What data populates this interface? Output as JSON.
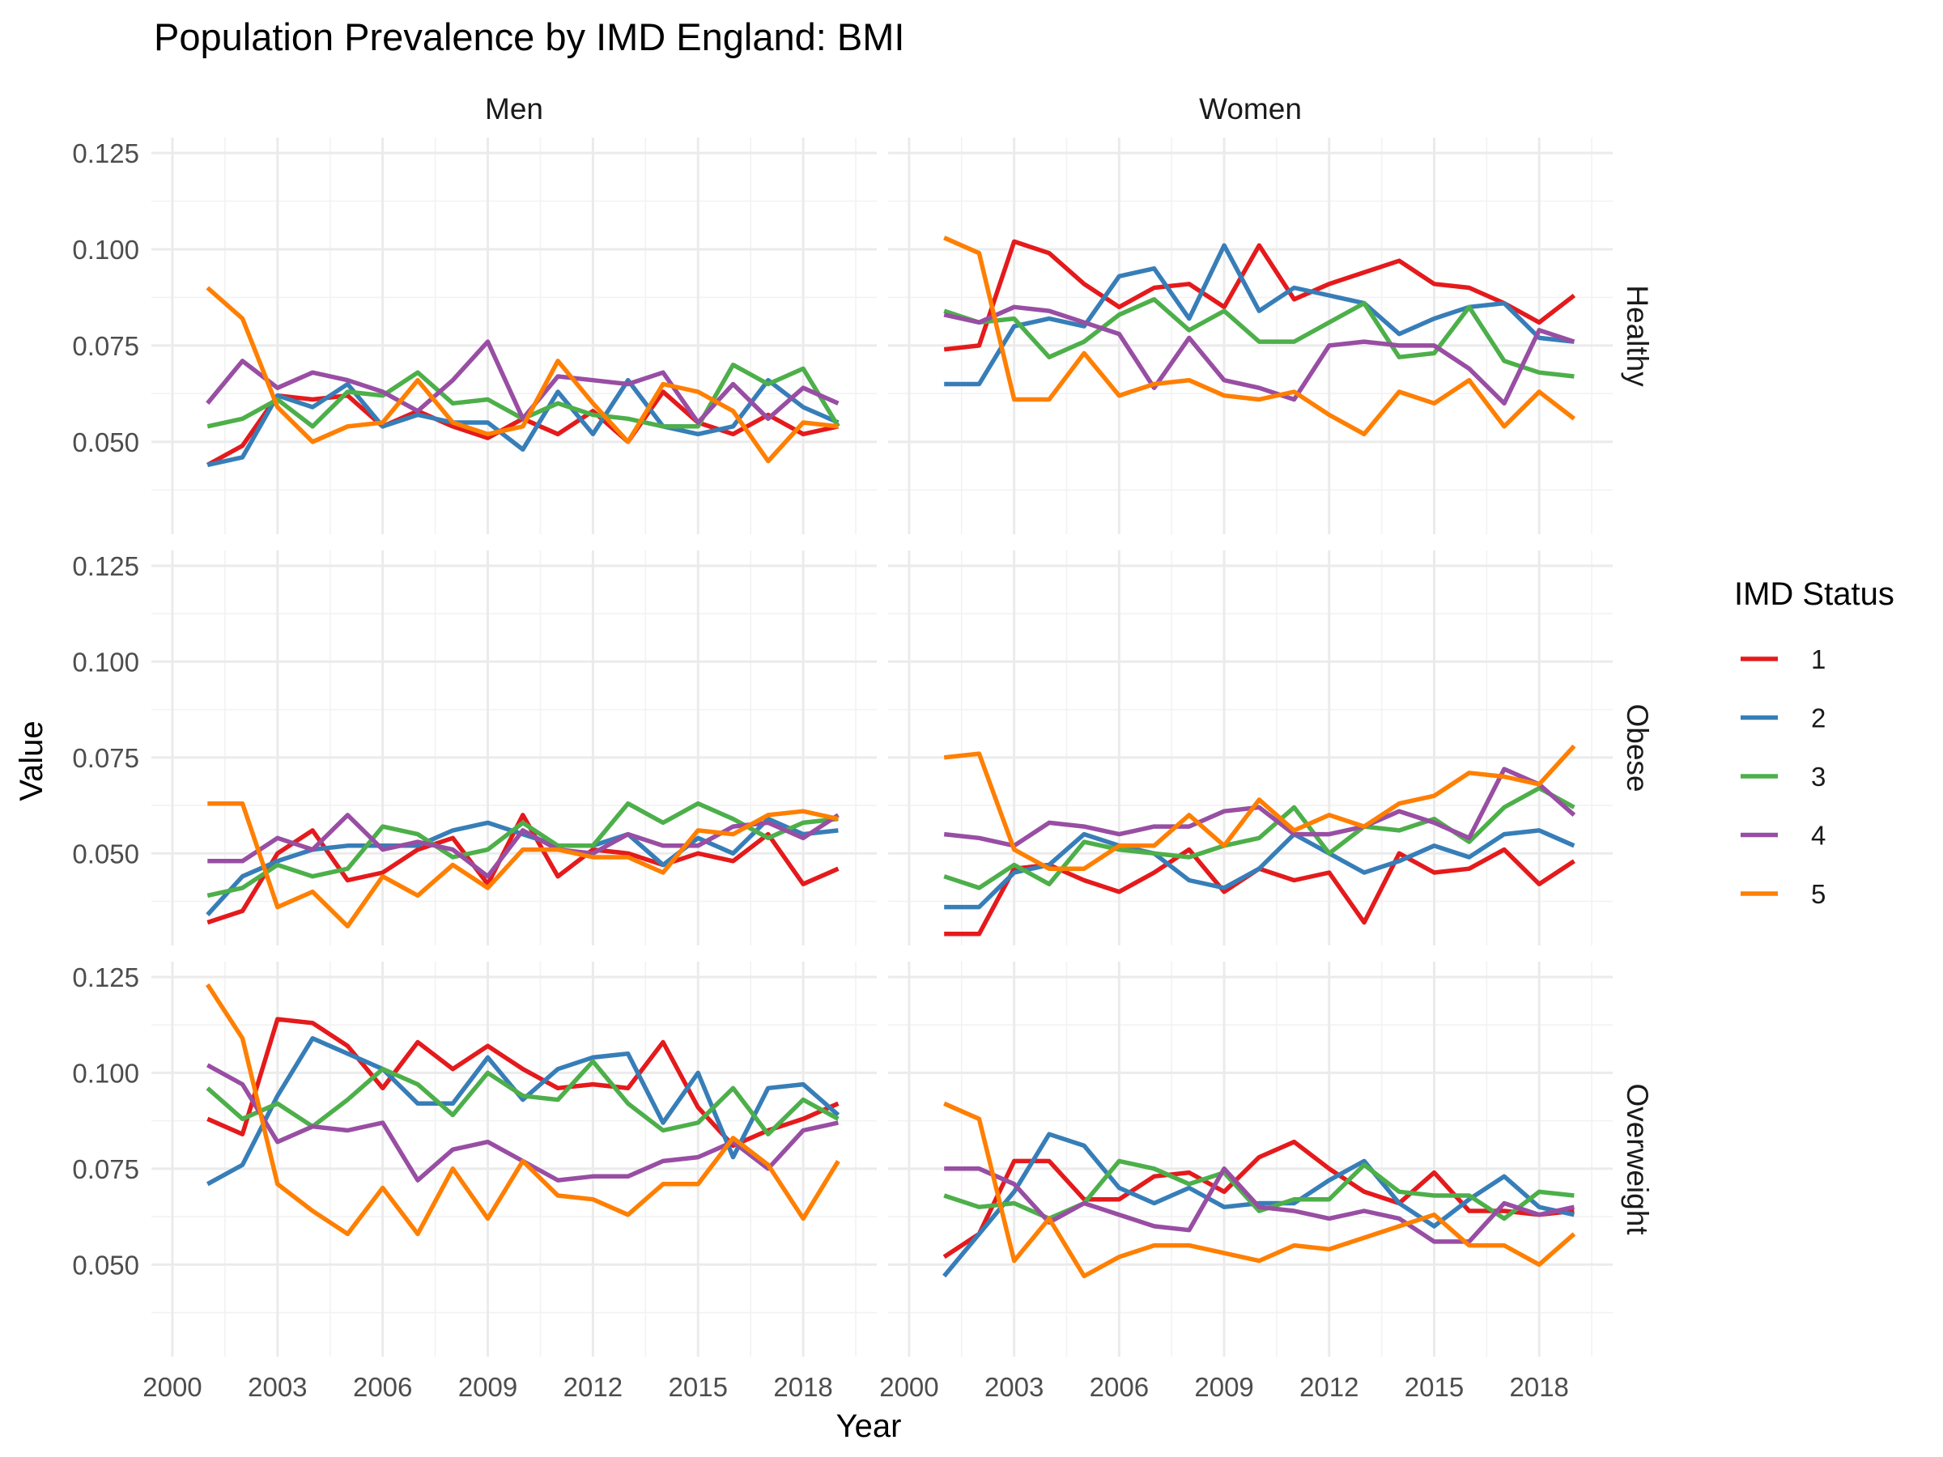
{
  "chart_data": {
    "type": "line",
    "title": "Population Prevalence by IMD England: BMI",
    "xlabel": "Year",
    "ylabel": "Value",
    "columns": [
      "Men",
      "Women"
    ],
    "rows": [
      "Healthy",
      "Obese",
      "Overweight"
    ],
    "x_ticks": [
      2000,
      2003,
      2006,
      2009,
      2012,
      2015,
      2018
    ],
    "x_tick_labels": [
      "2000",
      "2003",
      "2006",
      "2009",
      "2012",
      "2015",
      "2018"
    ],
    "xlim": [
      1999.4,
      2020.1
    ],
    "y_ticks": [
      0.05,
      0.075,
      0.1,
      0.125
    ],
    "y_tick_labels": [
      "0.050",
      "0.075",
      "0.100",
      "0.125"
    ],
    "ylim": [
      0.026,
      0.129
    ],
    "grid": true,
    "legend": {
      "title": "IMD Status",
      "position": "right",
      "items": [
        {
          "label": "1",
          "color": "#E41A1C"
        },
        {
          "label": "2",
          "color": "#377EB8"
        },
        {
          "label": "3",
          "color": "#4DAF4A"
        },
        {
          "label": "4",
          "color": "#984EA3"
        },
        {
          "label": "5",
          "color": "#FF7F00"
        }
      ]
    },
    "x": [
      2001,
      2002,
      2003,
      2004,
      2005,
      2006,
      2007,
      2008,
      2009,
      2010,
      2011,
      2012,
      2013,
      2014,
      2015,
      2016,
      2017,
      2018,
      2019
    ],
    "panels": [
      {
        "column": "Men",
        "row": "Healthy",
        "series": [
          {
            "name": "1",
            "values": [
              0.044,
              0.049,
              0.062,
              0.061,
              0.062,
              0.054,
              0.058,
              0.054,
              0.051,
              0.056,
              0.052,
              0.058,
              0.05,
              0.063,
              0.055,
              0.052,
              0.057,
              0.052,
              0.054
            ]
          },
          {
            "name": "2",
            "values": [
              0.044,
              0.046,
              0.062,
              0.059,
              0.065,
              0.054,
              0.057,
              0.055,
              0.055,
              0.048,
              0.063,
              0.052,
              0.066,
              0.054,
              0.052,
              0.054,
              0.066,
              0.059,
              0.055
            ]
          },
          {
            "name": "3",
            "values": [
              0.054,
              0.056,
              0.061,
              0.054,
              0.063,
              0.062,
              0.068,
              0.06,
              0.061,
              0.056,
              0.06,
              0.057,
              0.056,
              0.054,
              0.054,
              0.07,
              0.065,
              0.069,
              0.054
            ]
          },
          {
            "name": "4",
            "values": [
              0.06,
              0.071,
              0.064,
              0.068,
              0.066,
              0.063,
              0.058,
              0.066,
              0.076,
              0.056,
              0.067,
              0.066,
              0.065,
              0.068,
              0.055,
              0.065,
              0.056,
              0.064,
              0.06
            ]
          },
          {
            "name": "5",
            "values": [
              0.09,
              0.082,
              0.059,
              0.05,
              0.054,
              0.055,
              0.066,
              0.055,
              0.052,
              0.054,
              0.071,
              0.06,
              0.05,
              0.065,
              0.063,
              0.058,
              0.045,
              0.055,
              0.054
            ]
          }
        ]
      },
      {
        "column": "Women",
        "row": "Healthy",
        "series": [
          {
            "name": "1",
            "values": [
              0.074,
              0.075,
              0.102,
              0.099,
              0.091,
              0.085,
              0.09,
              0.091,
              0.085,
              0.101,
              0.087,
              0.091,
              0.094,
              0.097,
              0.091,
              0.09,
              0.086,
              0.081,
              0.088
            ]
          },
          {
            "name": "2",
            "values": [
              0.065,
              0.065,
              0.08,
              0.082,
              0.08,
              0.093,
              0.095,
              0.082,
              0.101,
              0.084,
              0.09,
              0.088,
              0.086,
              0.078,
              0.082,
              0.085,
              0.086,
              0.077,
              0.076
            ]
          },
          {
            "name": "3",
            "values": [
              0.084,
              0.081,
              0.082,
              0.072,
              0.076,
              0.083,
              0.087,
              0.079,
              0.084,
              0.076,
              0.076,
              0.081,
              0.086,
              0.072,
              0.073,
              0.085,
              0.071,
              0.068,
              0.067
            ]
          },
          {
            "name": "4",
            "values": [
              0.083,
              0.081,
              0.085,
              0.084,
              0.081,
              0.078,
              0.064,
              0.077,
              0.066,
              0.064,
              0.061,
              0.075,
              0.076,
              0.075,
              0.075,
              0.069,
              0.06,
              0.079,
              0.076
            ]
          },
          {
            "name": "5",
            "values": [
              0.103,
              0.099,
              0.061,
              0.061,
              0.073,
              0.062,
              0.065,
              0.066,
              0.062,
              0.061,
              0.063,
              0.057,
              0.052,
              0.063,
              0.06,
              0.066,
              0.054,
              0.063,
              0.056
            ]
          }
        ]
      },
      {
        "column": "Men",
        "row": "Obese",
        "series": [
          {
            "name": "1",
            "values": [
              0.032,
              0.035,
              0.05,
              0.056,
              0.043,
              0.045,
              0.051,
              0.054,
              0.042,
              0.06,
              0.044,
              0.051,
              0.05,
              0.047,
              0.05,
              0.048,
              0.055,
              0.042,
              0.046
            ]
          },
          {
            "name": "2",
            "values": [
              0.034,
              0.044,
              0.048,
              0.051,
              0.052,
              0.052,
              0.052,
              0.056,
              0.058,
              0.055,
              0.052,
              0.052,
              0.055,
              0.047,
              0.054,
              0.05,
              0.059,
              0.055,
              0.056
            ]
          },
          {
            "name": "3",
            "values": [
              0.039,
              0.041,
              0.047,
              0.044,
              0.046,
              0.057,
              0.055,
              0.049,
              0.051,
              0.058,
              0.052,
              0.052,
              0.063,
              0.058,
              0.063,
              0.059,
              0.054,
              0.058,
              0.059
            ]
          },
          {
            "name": "4",
            "values": [
              0.048,
              0.048,
              0.054,
              0.051,
              0.06,
              0.051,
              0.053,
              0.051,
              0.044,
              0.056,
              0.051,
              0.05,
              0.055,
              0.052,
              0.052,
              0.057,
              0.058,
              0.054,
              0.06
            ]
          },
          {
            "name": "5",
            "values": [
              0.063,
              0.063,
              0.036,
              0.04,
              0.031,
              0.044,
              0.039,
              0.047,
              0.041,
              0.051,
              0.051,
              0.049,
              0.049,
              0.045,
              0.056,
              0.055,
              0.06,
              0.061,
              0.059
            ]
          }
        ]
      },
      {
        "column": "Women",
        "row": "Obese",
        "series": [
          {
            "name": "1",
            "values": [
              0.029,
              0.029,
              0.046,
              0.047,
              0.043,
              0.04,
              0.045,
              0.051,
              0.04,
              0.046,
              0.043,
              0.045,
              0.032,
              0.05,
              0.045,
              0.046,
              0.051,
              0.042,
              0.048
            ]
          },
          {
            "name": "2",
            "values": [
              0.036,
              0.036,
              0.045,
              0.047,
              0.055,
              0.052,
              0.05,
              0.043,
              0.041,
              0.046,
              0.055,
              0.05,
              0.045,
              0.048,
              0.052,
              0.049,
              0.055,
              0.056,
              0.052
            ]
          },
          {
            "name": "3",
            "values": [
              0.044,
              0.041,
              0.047,
              0.042,
              0.053,
              0.051,
              0.05,
              0.049,
              0.052,
              0.054,
              0.062,
              0.05,
              0.057,
              0.056,
              0.059,
              0.053,
              0.062,
              0.067,
              0.062
            ]
          },
          {
            "name": "4",
            "values": [
              0.055,
              0.054,
              0.052,
              0.058,
              0.057,
              0.055,
              0.057,
              0.057,
              0.061,
              0.062,
              0.055,
              0.055,
              0.057,
              0.061,
              0.058,
              0.054,
              0.072,
              0.068,
              0.06
            ]
          },
          {
            "name": "5",
            "values": [
              0.075,
              0.076,
              0.051,
              0.046,
              0.046,
              0.052,
              0.052,
              0.06,
              0.052,
              0.064,
              0.056,
              0.06,
              0.057,
              0.063,
              0.065,
              0.071,
              0.07,
              0.068,
              0.078
            ]
          }
        ]
      },
      {
        "column": "Men",
        "row": "Overweight",
        "series": [
          {
            "name": "1",
            "values": [
              0.088,
              0.084,
              0.114,
              0.113,
              0.107,
              0.096,
              0.108,
              0.101,
              0.107,
              0.101,
              0.096,
              0.097,
              0.096,
              0.108,
              0.091,
              0.081,
              0.085,
              0.088,
              0.092
            ]
          },
          {
            "name": "2",
            "values": [
              0.071,
              0.076,
              0.094,
              0.109,
              0.105,
              0.101,
              0.092,
              0.092,
              0.104,
              0.093,
              0.101,
              0.104,
              0.105,
              0.087,
              0.1,
              0.078,
              0.096,
              0.097,
              0.089
            ]
          },
          {
            "name": "3",
            "values": [
              0.096,
              0.088,
              0.092,
              0.086,
              0.093,
              0.101,
              0.097,
              0.089,
              0.1,
              0.094,
              0.093,
              0.103,
              0.092,
              0.085,
              0.087,
              0.096,
              0.084,
              0.093,
              0.088
            ]
          },
          {
            "name": "4",
            "values": [
              0.102,
              0.097,
              0.082,
              0.086,
              0.085,
              0.087,
              0.072,
              0.08,
              0.082,
              0.077,
              0.072,
              0.073,
              0.073,
              0.077,
              0.078,
              0.082,
              0.075,
              0.085,
              0.087
            ]
          },
          {
            "name": "5",
            "values": [
              0.123,
              0.109,
              0.071,
              0.064,
              0.058,
              0.07,
              0.058,
              0.075,
              0.062,
              0.077,
              0.068,
              0.067,
              0.063,
              0.071,
              0.071,
              0.083,
              0.076,
              0.062,
              0.077
            ]
          }
        ]
      },
      {
        "column": "Women",
        "row": "Overweight",
        "series": [
          {
            "name": "1",
            "values": [
              0.052,
              0.058,
              0.077,
              0.077,
              0.067,
              0.067,
              0.073,
              0.074,
              0.069,
              0.078,
              0.082,
              0.075,
              0.069,
              0.066,
              0.074,
              0.064,
              0.064,
              0.063,
              0.064
            ]
          },
          {
            "name": "2",
            "values": [
              0.047,
              0.058,
              0.069,
              0.084,
              0.081,
              0.07,
              0.066,
              0.07,
              0.065,
              0.066,
              0.066,
              0.072,
              0.077,
              0.066,
              0.06,
              0.067,
              0.073,
              0.065,
              0.063
            ]
          },
          {
            "name": "3",
            "values": [
              0.068,
              0.065,
              0.066,
              0.062,
              0.066,
              0.077,
              0.075,
              0.071,
              0.074,
              0.064,
              0.067,
              0.067,
              0.076,
              0.069,
              0.068,
              0.068,
              0.062,
              0.069,
              0.068
            ]
          },
          {
            "name": "4",
            "values": [
              0.075,
              0.075,
              0.071,
              0.061,
              0.066,
              0.063,
              0.06,
              0.059,
              0.075,
              0.065,
              0.064,
              0.062,
              0.064,
              0.062,
              0.056,
              0.056,
              0.066,
              0.063,
              0.065
            ]
          },
          {
            "name": "5",
            "values": [
              0.092,
              0.088,
              0.051,
              0.062,
              0.047,
              0.052,
              0.055,
              0.055,
              0.053,
              0.051,
              0.055,
              0.054,
              0.057,
              0.06,
              0.063,
              0.055,
              0.055,
              0.05,
              0.058
            ]
          }
        ]
      }
    ]
  }
}
